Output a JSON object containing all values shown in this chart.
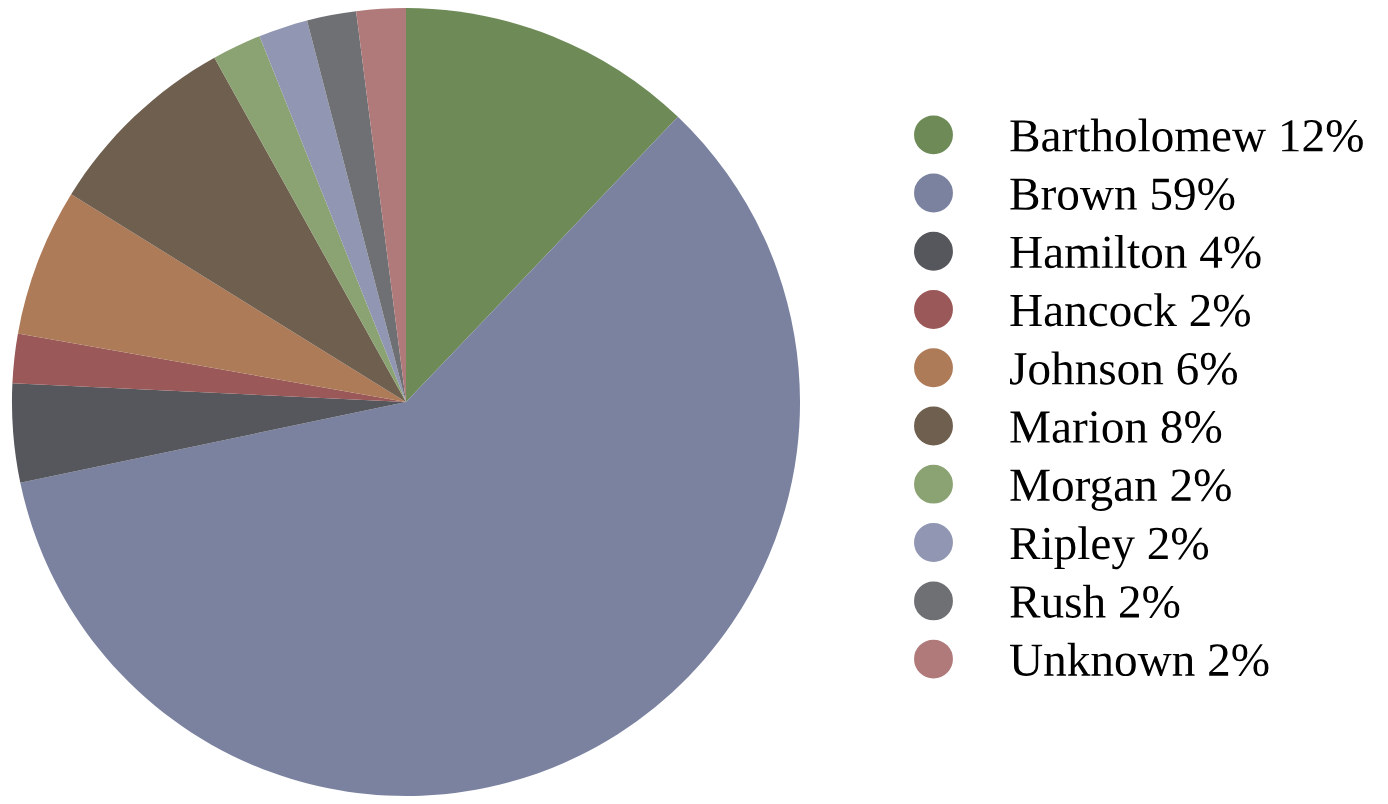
{
  "chart_data": {
    "type": "pie",
    "categories": [
      "Bartholomew",
      "Brown",
      "Hamilton",
      "Hancock",
      "Johnson",
      "Marion",
      "Morgan",
      "Ripley",
      "Rush",
      "Unknown"
    ],
    "values": [
      12,
      59,
      4,
      2,
      6,
      8,
      2,
      2,
      2,
      2
    ],
    "value_labels": [
      "12%",
      "59%",
      "4%",
      "2%",
      "6%",
      "8%",
      "2%",
      "2%",
      "2%",
      "2%"
    ],
    "colors": [
      "#6d8a57",
      "#7b82a0",
      "#56575c",
      "#9a5858",
      "#ae7b58",
      "#6f5f4f",
      "#8ba273",
      "#9197b2",
      "#6f7074",
      "#b07a7a"
    ],
    "legend": "right"
  }
}
